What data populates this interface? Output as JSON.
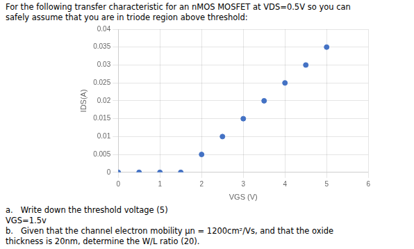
{
  "chart_data": {
    "type": "scatter",
    "title": [
      "For the following transfer characteristic for an nMOS MOSFET at VDS=0.5V so you can",
      "safely assume that you are in triode region above threshold:"
    ],
    "annotations": [
      "a.   Write down the threshold voltage (5)",
      "VGS=1.5v",
      "b.   Given that the channel electron mobility μn = 1200cm²/Vs, and that the oxide",
      "thickness is 20nm, determine the W/L ratio (20)."
    ],
    "x_label": "VGS (V)",
    "y_label": "IDS(A)",
    "x": [
      0,
      0.5,
      1.0,
      1.5,
      2.0,
      2.5,
      3.0,
      3.5,
      4.0,
      4.5,
      5.0
    ],
    "values": [
      0,
      0.0,
      0.0,
      0.0,
      0.005,
      0.01,
      0.015,
      0.02,
      0.025,
      0.03,
      0.035
    ],
    "color": "#4472C4",
    "xlim": [
      0,
      6
    ],
    "xticks": [
      0,
      1,
      2,
      3,
      4,
      5,
      6
    ],
    "ylim": [
      0,
      0.04
    ],
    "yticks": [
      0,
      0.005,
      0.01,
      0.015,
      0.02,
      0.025,
      0.03,
      0.035,
      0.04
    ],
    "grid": true
  }
}
